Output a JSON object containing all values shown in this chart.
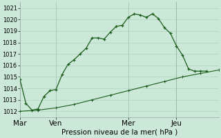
{
  "title": "Pression niveau de la mer( hPa )",
  "bg_color": "#cce8d8",
  "grid_color": "#aaccbb",
  "line_color": "#1a5c1a",
  "ylim": [
    1011.5,
    1021.5
  ],
  "yticks": [
    1012,
    1013,
    1014,
    1015,
    1016,
    1017,
    1018,
    1019,
    1020,
    1021
  ],
  "day_labels": [
    "Mar",
    "Ven",
    "Mer",
    "Jeu"
  ],
  "day_positions": [
    0,
    6,
    18,
    26
  ],
  "xlim": [
    0,
    33
  ],
  "line1_x": [
    0,
    1,
    2,
    3,
    4,
    5,
    6,
    7,
    8,
    9,
    10,
    11,
    12,
    13,
    14,
    15,
    16,
    17,
    18,
    19,
    20,
    21,
    22,
    23,
    24,
    25,
    26,
    27,
    28,
    29,
    30,
    31
  ],
  "line1_y": [
    1014.8,
    1012.7,
    1012.1,
    1012.2,
    1013.3,
    1013.8,
    1013.9,
    1015.2,
    1016.1,
    1016.5,
    1017.0,
    1017.5,
    1018.4,
    1018.4,
    1018.3,
    1018.9,
    1019.4,
    1019.5,
    1020.2,
    1020.5,
    1020.4,
    1020.2,
    1020.5,
    1020.1,
    1019.3,
    1018.8,
    1017.7,
    1016.9,
    1015.7,
    1015.5,
    1015.5,
    1015.5
  ],
  "line2_x": [
    0,
    3,
    6,
    9,
    12,
    15,
    18,
    21,
    24,
    27,
    30,
    33
  ],
  "line2_y": [
    1012.0,
    1012.1,
    1012.3,
    1012.6,
    1013.0,
    1013.4,
    1013.8,
    1014.2,
    1014.6,
    1015.0,
    1015.3,
    1015.6
  ],
  "tick_fontsize": 6,
  "xlabel_fontsize": 7.5
}
